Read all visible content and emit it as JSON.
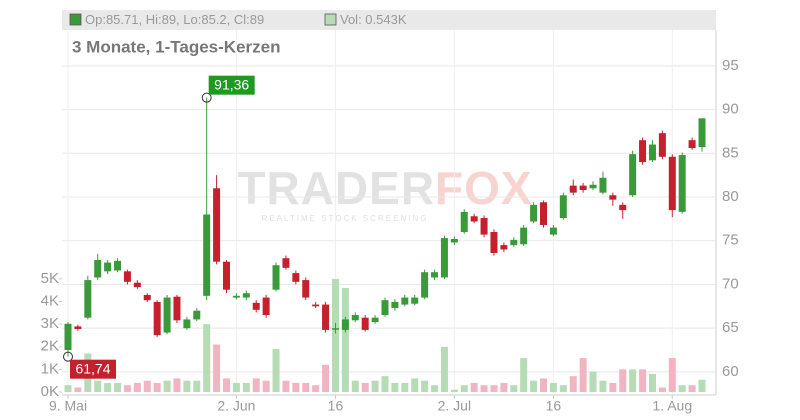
{
  "chart_data": {
    "type": "candlestick",
    "subtitle": "3 Monate, 1-Tages-Kerzen",
    "legend": [
      "Op:85.71, Hi:89, Lo:85.2, Cl:89",
      "Vol: 0.543K"
    ],
    "watermark": {
      "brand": [
        "TRADER",
        "FOX"
      ],
      "tagline": "REALTIME STOCK SCREENING"
    },
    "categories": [
      "9. Mai",
      null,
      null,
      null,
      null,
      null,
      null,
      null,
      null,
      null,
      null,
      null,
      null,
      null,
      null,
      null,
      null,
      "2. Jun",
      null,
      null,
      null,
      null,
      null,
      null,
      null,
      null,
      null,
      "16",
      null,
      null,
      null,
      null,
      null,
      null,
      null,
      null,
      null,
      null,
      null,
      "2. Jul",
      null,
      null,
      null,
      null,
      null,
      null,
      null,
      null,
      null,
      "16",
      null,
      null,
      null,
      null,
      null,
      null,
      null,
      null,
      null,
      null,
      null,
      "1. Aug",
      null,
      null,
      null
    ],
    "open": [
      62.5,
      65.2,
      66.2,
      70.8,
      71.5,
      71.6,
      71.5,
      70.2,
      68.8,
      68.0,
      64.5,
      68.6,
      65.0,
      66.0,
      68.7,
      81.0,
      72.6,
      68.5,
      68.5,
      67.9,
      68.5,
      69.4,
      73.0,
      71.3,
      70.5,
      67.7,
      67.7,
      65.0,
      64.8,
      65.9,
      66.2,
      65.7,
      66.5,
      67.3,
      67.7,
      67.8,
      68.5,
      70.8,
      70.8,
      74.8,
      76.0,
      77.8,
      77.6,
      76.0,
      74.5,
      74.5,
      74.6,
      77.2,
      79.4,
      75.7,
      77.6,
      81.3,
      81.3,
      81.0,
      80.5,
      80.2,
      79.1,
      80.2,
      86.5,
      84.2,
      87.3,
      84.6,
      78.3,
      86.5,
      85.71
    ],
    "high": [
      65.7,
      65.4,
      71.0,
      73.5,
      72.8,
      73.0,
      71.7,
      70.5,
      69.0,
      68.2,
      68.8,
      68.8,
      66.3,
      67.3,
      91.36,
      82.5,
      72.8,
      69.0,
      69.3,
      68.2,
      68.8,
      72.5,
      73.3,
      71.6,
      70.8,
      68.0,
      68.0,
      65.6,
      66.3,
      66.8,
      66.5,
      66.5,
      68.5,
      68.3,
      68.8,
      68.8,
      71.7,
      71.7,
      75.6,
      75.5,
      78.6,
      78.1,
      77.9,
      76.3,
      74.8,
      75.4,
      76.8,
      79.4,
      79.6,
      76.8,
      80.5,
      82.0,
      81.6,
      81.8,
      82.9,
      80.5,
      79.4,
      85.3,
      86.8,
      86.5,
      87.6,
      84.9,
      85.1,
      86.8,
      89
    ],
    "low": [
      61.74,
      64.7,
      66.0,
      70.5,
      71.2,
      71.4,
      70.0,
      69.5,
      68.0,
      64.0,
      64.3,
      65.6,
      64.8,
      65.8,
      68.2,
      72.3,
      69.0,
      68.3,
      68.2,
      66.8,
      66.2,
      69.2,
      71.7,
      70.0,
      68.2,
      67.3,
      64.5,
      64.4,
      64.5,
      65.7,
      64.6,
      65.5,
      66.3,
      67.0,
      67.5,
      67.6,
      68.3,
      70.5,
      70.6,
      74.5,
      75.8,
      77.0,
      75.4,
      73.3,
      73.7,
      74.3,
      74.4,
      77.0,
      76.5,
      75.5,
      77.4,
      80.2,
      80.5,
      80.8,
      80.3,
      79.0,
      77.5,
      80.0,
      83.7,
      84.0,
      84.3,
      77.7,
      78.1,
      85.4,
      85.2
    ],
    "close": [
      65.5,
      64.9,
      70.5,
      72.8,
      72.5,
      72.7,
      70.3,
      69.7,
      68.2,
      64.2,
      68.5,
      65.9,
      66.0,
      67.0,
      78.0,
      72.6,
      69.4,
      68.7,
      69.0,
      67.1,
      66.5,
      72.2,
      71.9,
      70.3,
      68.5,
      67.5,
      64.8,
      65.0,
      66.0,
      66.5,
      64.8,
      66.2,
      68.2,
      68.0,
      68.5,
      68.5,
      71.4,
      71.4,
      75.3,
      75.2,
      78.3,
      77.2,
      75.7,
      73.6,
      74.0,
      75.1,
      76.5,
      79.1,
      76.8,
      76.5,
      80.2,
      80.5,
      80.8,
      81.4,
      82.2,
      79.7,
      78.5,
      84.9,
      84.0,
      86.0,
      84.6,
      78.5,
      84.8,
      85.6,
      89
    ],
    "volume": [
      0.3,
      0.2,
      1.7,
      0.5,
      0.4,
      0.4,
      0.3,
      0.4,
      0.5,
      0.4,
      0.5,
      0.6,
      0.5,
      0.5,
      3.0,
      2.1,
      0.6,
      0.4,
      0.4,
      0.6,
      0.5,
      1.9,
      0.5,
      0.4,
      0.4,
      0.3,
      1.2,
      5.0,
      4.6,
      0.5,
      0.4,
      0.5,
      0.7,
      0.4,
      0.4,
      0.6,
      0.5,
      0.3,
      2.0,
      0.1,
      0.3,
      0.4,
      0.3,
      0.3,
      0.4,
      0.3,
      1.5,
      0.5,
      0.6,
      0.4,
      0.3,
      0.7,
      1.5,
      0.9,
      0.5,
      0.4,
      1.0,
      1.0,
      1.0,
      0.8,
      0.2,
      1.5,
      0.3,
      0.3,
      0.543
    ],
    "up_color": "#3a9a3a",
    "down_color": "#c4202e",
    "volume_up_color": "#b5dcb5",
    "volume_down_color": "#f2b4c0",
    "ylim": [
      57.7,
      99.1
    ],
    "yticks": [
      60,
      65,
      70,
      75,
      80,
      85,
      90,
      95
    ],
    "y2lim": [
      0,
      16
    ],
    "y2ticks": [
      {
        "value": 0,
        "label": "0K"
      },
      {
        "value": 1,
        "label": "1K"
      },
      {
        "value": 2,
        "label": "2K"
      },
      {
        "value": 3,
        "label": "3K"
      },
      {
        "value": 4,
        "label": "4K"
      },
      {
        "value": 5,
        "label": "5K"
      }
    ],
    "grid": true,
    "annotations": [
      {
        "text": "91,36",
        "value": 91.36,
        "x": 14,
        "color": "#1f9a1f"
      },
      {
        "text": "61,74",
        "value": 61.74,
        "x": 0,
        "color": "#c4202e"
      }
    ]
  }
}
